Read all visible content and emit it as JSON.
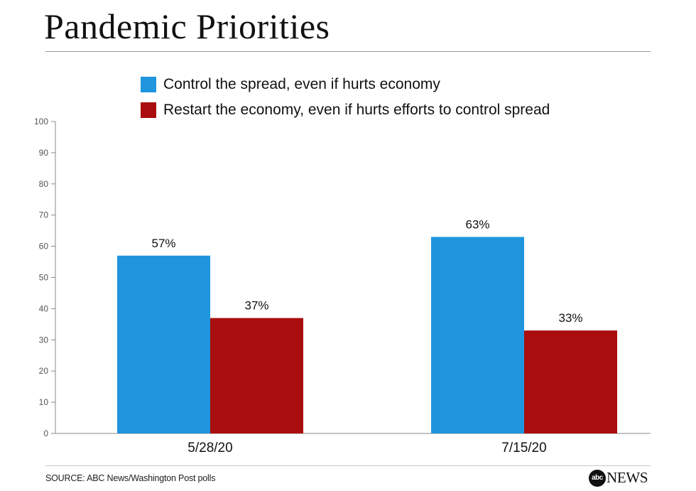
{
  "header": {
    "title": "Pandemic Priorities"
  },
  "chart_data": {
    "type": "bar",
    "categories": [
      "5/28/20",
      "7/15/20"
    ],
    "series": [
      {
        "name": "Control the spread, even if hurts economy",
        "values": [
          57,
          63
        ],
        "labels": [
          "57%",
          "63%"
        ],
        "color": "#1f95de"
      },
      {
        "name": "Restart the economy, even if hurts efforts to control spread",
        "values": [
          37,
          33
        ],
        "labels": [
          "37%",
          "33%"
        ],
        "color": "#a90d0d"
      }
    ],
    "yticks": [
      "0",
      "10",
      "20",
      "30",
      "40",
      "50",
      "60",
      "70",
      "80",
      "90",
      "100"
    ],
    "ylim": [
      0,
      100
    ],
    "grid": false,
    "legend_position": "top-left"
  },
  "footer": {
    "source": "SOURCE: ABC News/Washington Post polls",
    "logo_badge": "abc",
    "logo_word": "NEWS"
  }
}
